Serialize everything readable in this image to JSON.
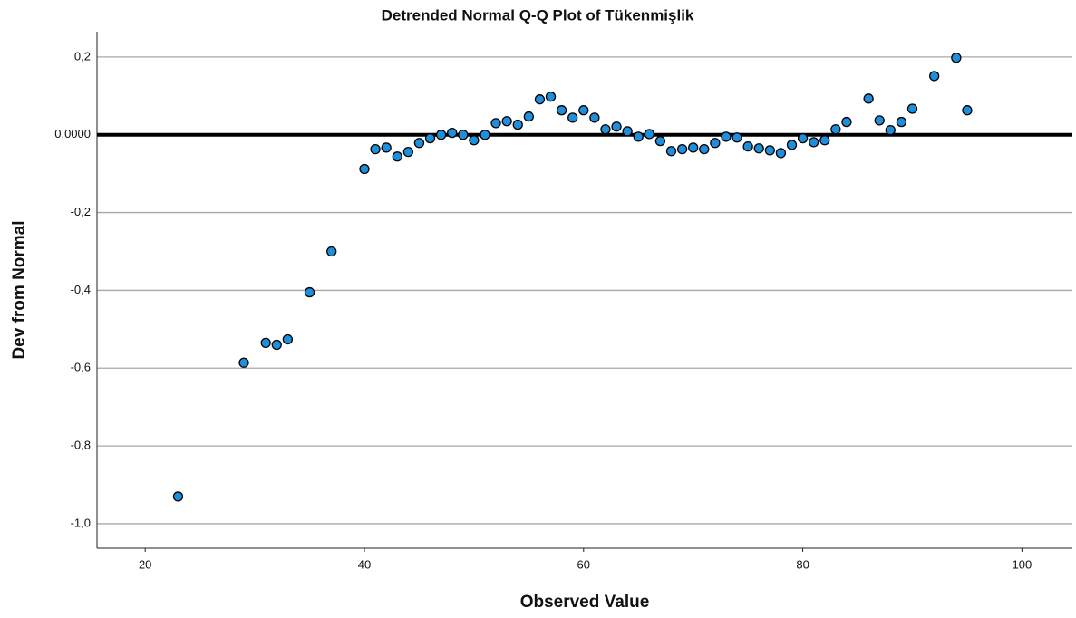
{
  "chart_data": {
    "type": "scatter",
    "title": "Detrended Normal Q-Q Plot of Tükenmişlik",
    "x_label": "Observed Value",
    "y_label": "Dev from Normal",
    "color": "#1f8fdc",
    "grid": true,
    "reference_y": 0,
    "xlim": [
      15.6,
      104.6
    ],
    "xticks": [
      20,
      40,
      60,
      80,
      100
    ],
    "ylim": [
      -1.063,
      0.265
    ],
    "yticks": [
      {
        "value": 0.2,
        "label": "0,2"
      },
      {
        "value": 0,
        "label": "0,0000"
      },
      {
        "value": -0.2,
        "label": "-0,2"
      },
      {
        "value": -0.4,
        "label": "-0,4"
      },
      {
        "value": -0.6,
        "label": "-0,6"
      },
      {
        "value": -0.8,
        "label": "-0,8"
      },
      {
        "value": -1.0,
        "label": "-1,0"
      }
    ],
    "x": [
      23,
      29,
      31,
      32,
      33,
      35,
      37,
      40,
      41,
      42,
      43,
      44,
      45,
      46,
      47,
      48,
      49,
      50,
      51,
      52,
      53,
      54,
      55,
      56,
      57,
      58,
      59,
      60,
      61,
      62,
      63,
      64,
      65,
      66,
      67,
      68,
      69,
      70,
      71,
      72,
      73,
      74,
      75,
      76,
      77,
      78,
      79,
      80,
      81,
      82,
      83,
      84,
      86,
      87,
      88,
      89,
      90,
      92,
      94,
      95
    ],
    "values": [
      -0.93,
      -0.586,
      -0.535,
      -0.54,
      -0.526,
      -0.405,
      -0.3,
      -0.088,
      -0.037,
      -0.033,
      -0.056,
      -0.044,
      -0.021,
      -0.009,
      0.0,
      0.005,
      0.0,
      -0.014,
      0.0,
      0.03,
      0.035,
      0.026,
      0.047,
      0.091,
      0.098,
      0.063,
      0.044,
      0.063,
      0.044,
      0.014,
      0.021,
      0.009,
      -0.005,
      0.002,
      -0.016,
      -0.042,
      -0.037,
      -0.033,
      -0.037,
      -0.021,
      -0.005,
      -0.007,
      -0.03,
      -0.035,
      -0.04,
      -0.047,
      -0.026,
      -0.009,
      -0.019,
      -0.014,
      0.014,
      0.033,
      0.093,
      0.037,
      0.012,
      0.033,
      0.067,
      0.151,
      0.198,
      0.063
    ]
  }
}
